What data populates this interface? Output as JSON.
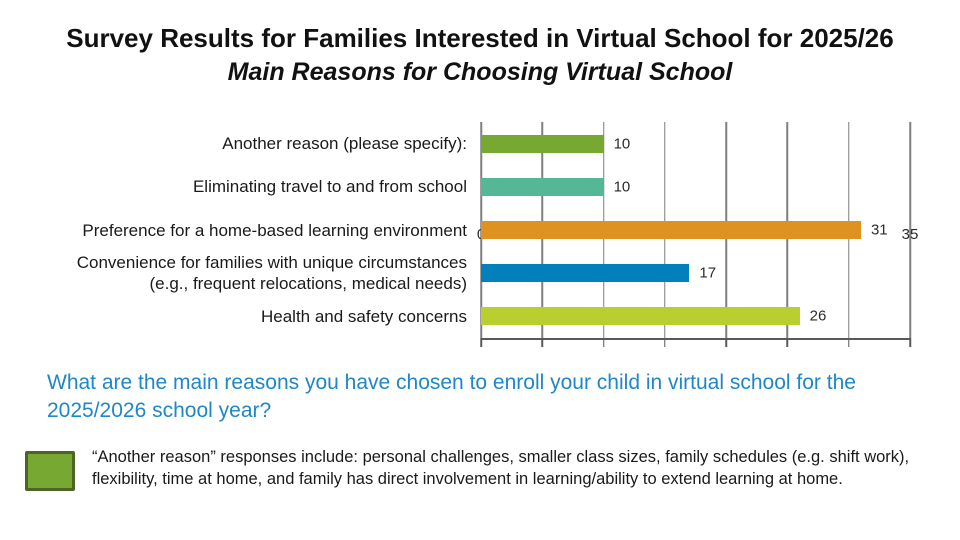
{
  "chart_data": {
    "type": "bar",
    "orientation": "horizontal",
    "title": "Survey Results for Families Interested in Virtual School for 2025/26",
    "subtitle": "Main Reasons for Choosing Virtual School",
    "categories": [
      "Another reason (please specify):",
      "Eliminating travel to and from school",
      "Preference for a home-based learning environment",
      "Convenience for families with unique circumstances\n(e.g., frequent relocations, medical needs)",
      "Health and safety concerns"
    ],
    "values": [
      10,
      10,
      31,
      17,
      26
    ],
    "bar_colors": [
      "#76A832",
      "#54B795",
      "#DD9221",
      "#0280BC",
      "#B9CE2F"
    ],
    "xlabel": "",
    "ylabel": "",
    "xlim": [
      0,
      35
    ],
    "xticks": [
      0,
      5,
      10,
      15,
      20,
      25,
      30,
      35
    ],
    "grid": "vertical",
    "gridline_color": "#7F7F7F",
    "axis_color": "#595959",
    "value_labels": true,
    "legend_position": "none"
  },
  "question": {
    "text": "What are the main reasons you have chosen to enroll your child in virtual school for the 2025/2026 school year?",
    "color": "#1F87C5"
  },
  "footnote": {
    "swatch_color": "#76A832",
    "swatch_border_color": "#4F6228",
    "text": "“Another reason” responses include: personal challenges, smaller class sizes, family schedules (e.g. shift work), flexibility, time at home, and family has direct involvement in learning/ability to extend learning at home."
  }
}
